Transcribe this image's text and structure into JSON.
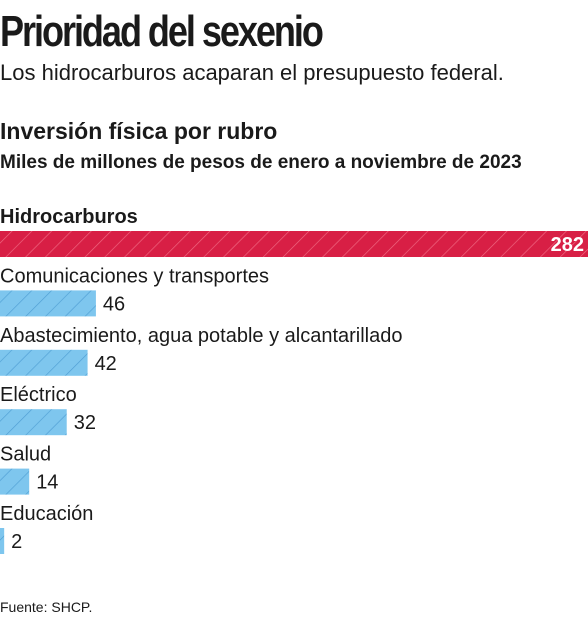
{
  "headline": "Prioridad del sexenio",
  "dek": "Los hidrocarburos acaparan el presupuesto federal.",
  "source": "Fuente: SHCP.",
  "colors": {
    "highlight": "#d81f45",
    "default": "#7ec6ee",
    "hatch": "#4f9fd4"
  },
  "chart_data": {
    "type": "bar",
    "orientation": "horizontal",
    "title": "Inversión física por rubro",
    "subtitle": "Miles de millones de pesos de enero a noviembre de 2023",
    "categories": [
      "Hidrocarburos",
      "Comunicaciones y transportes",
      "Abastecimiento, agua potable y alcantarillado",
      "Eléctrico",
      "Salud",
      "Educación"
    ],
    "values": [
      282,
      46,
      42,
      32,
      14,
      2
    ],
    "highlight_category": "Hidrocarburos",
    "xlim": [
      0,
      282
    ],
    "grid": false,
    "legend": "none"
  }
}
